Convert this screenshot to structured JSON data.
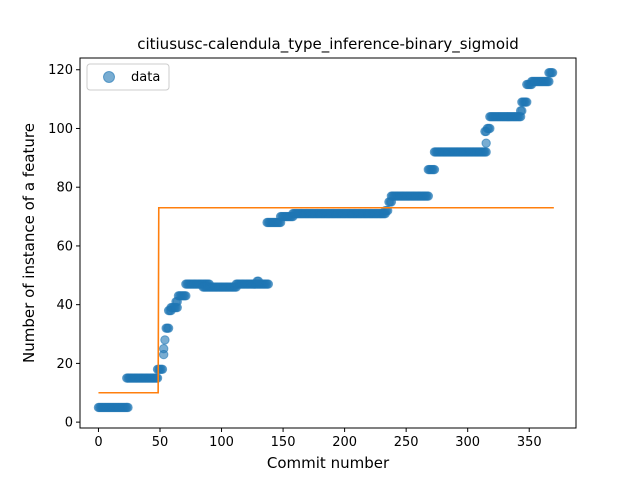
{
  "chart_data": {
    "type": "scatter",
    "title": "citiususc-calendula_type_inference-binary_sigmoid",
    "xlabel": "Commit number",
    "ylabel": "Number of instance of a feature",
    "xlim": [
      -15,
      388
    ],
    "ylim": [
      -2,
      124
    ],
    "xticks": [
      0,
      50,
      100,
      150,
      200,
      250,
      300,
      350
    ],
    "yticks": [
      0,
      20,
      40,
      60,
      80,
      100,
      120
    ],
    "legend": {
      "position": "top-left",
      "entries": [
        "data"
      ]
    },
    "colors": {
      "data": "#1f77b4",
      "fit": "#ff7f0e"
    },
    "series": [
      {
        "name": "data",
        "kind": "scatter",
        "runs": [
          {
            "x_start": 0,
            "x_end": 24,
            "y": 5
          },
          {
            "x_start": 23,
            "x_end": 48,
            "y": 15
          },
          {
            "x_start": 48,
            "x_end": 52,
            "y": 18
          },
          {
            "x_start": 53,
            "x_end": 53,
            "y": 23
          },
          {
            "x_start": 53,
            "x_end": 53,
            "y": 25
          },
          {
            "x_start": 54,
            "x_end": 54,
            "y": 28
          },
          {
            "x_start": 55,
            "x_end": 57,
            "y": 32
          },
          {
            "x_start": 57,
            "x_end": 59,
            "y": 38
          },
          {
            "x_start": 59,
            "x_end": 64,
            "y": 39
          },
          {
            "x_start": 63,
            "x_end": 64,
            "y": 41
          },
          {
            "x_start": 65,
            "x_end": 71,
            "y": 43
          },
          {
            "x_start": 71,
            "x_end": 90,
            "y": 47
          },
          {
            "x_start": 85,
            "x_end": 112,
            "y": 46
          },
          {
            "x_start": 112,
            "x_end": 138,
            "y": 47
          },
          {
            "x_start": 129,
            "x_end": 130,
            "y": 48
          },
          {
            "x_start": 137,
            "x_end": 148,
            "y": 68
          },
          {
            "x_start": 148,
            "x_end": 158,
            "y": 70
          },
          {
            "x_start": 158,
            "x_end": 233,
            "y": 71
          },
          {
            "x_start": 233,
            "x_end": 235,
            "y": 72
          },
          {
            "x_start": 236,
            "x_end": 238,
            "y": 75
          },
          {
            "x_start": 238,
            "x_end": 268,
            "y": 77
          },
          {
            "x_start": 268,
            "x_end": 273,
            "y": 86
          },
          {
            "x_start": 273,
            "x_end": 315,
            "y": 92
          },
          {
            "x_start": 315,
            "x_end": 315,
            "y": 95
          },
          {
            "x_start": 314,
            "x_end": 315,
            "y": 99
          },
          {
            "x_start": 316,
            "x_end": 318,
            "y": 100
          },
          {
            "x_start": 318,
            "x_end": 343,
            "y": 104
          },
          {
            "x_start": 343,
            "x_end": 344,
            "y": 106
          },
          {
            "x_start": 344,
            "x_end": 348,
            "y": 109
          },
          {
            "x_start": 348,
            "x_end": 352,
            "y": 115
          },
          {
            "x_start": 352,
            "x_end": 366,
            "y": 116
          },
          {
            "x_start": 366,
            "x_end": 369,
            "y": 119
          }
        ]
      },
      {
        "name": "",
        "kind": "line",
        "points": [
          [
            0,
            10
          ],
          [
            48,
            10
          ],
          [
            48.5,
            10
          ],
          [
            49,
            73
          ],
          [
            370,
            73
          ]
        ]
      }
    ]
  }
}
